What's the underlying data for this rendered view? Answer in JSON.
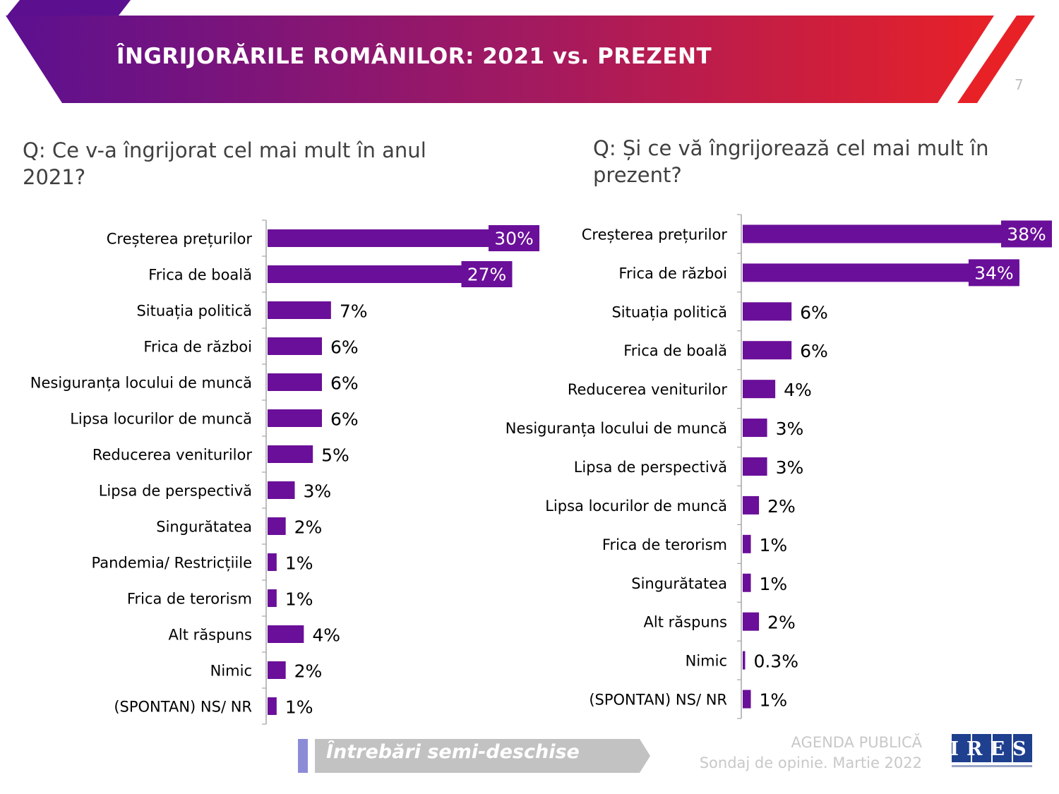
{
  "header": {
    "title": "ÎNGRIJORĂRILE ROMÂNILOR: 2021 vs. PREZENT",
    "page_number": "7"
  },
  "colors": {
    "bar": "#6a0f99",
    "banner_start": "#5c1090",
    "banner_end": "#e82127",
    "axis": "#a6a6a6"
  },
  "chart_data": [
    {
      "type": "bar",
      "orientation": "horizontal",
      "title": "Q: Ce v-a îngrijorat cel mai mult în anul 2021?",
      "categories": [
        "Creșterea prețurilor",
        "Frica de boală",
        "Situația politică",
        "Frica de război",
        "Nesiguranța locului de muncă",
        "Lipsa locurilor de muncă",
        "Reducerea veniturilor",
        "Lipsa de perspectivă",
        "Singurătatea",
        "Pandemia/ Restricțiile",
        "Frica de terorism",
        "Alt răspuns",
        "Nimic",
        "(SPONTAN) NS/ NR"
      ],
      "values": [
        30,
        27,
        7,
        6,
        6,
        6,
        5,
        3,
        2,
        1,
        1,
        4,
        2,
        1
      ],
      "labels": [
        "30%",
        "27%",
        "7%",
        "6%",
        "6%",
        "6%",
        "5%",
        "3%",
        "2%",
        "1%",
        "1%",
        "4%",
        "2%",
        "1%"
      ],
      "xlim": [
        0,
        30
      ],
      "unit": "%"
    },
    {
      "type": "bar",
      "orientation": "horizontal",
      "title": "Q: Și ce vă îngrijorează cel mai mult în prezent?",
      "categories": [
        "Creșterea prețurilor",
        "Frica de război",
        "Situația politică",
        "Frica de boală",
        "Reducerea veniturilor",
        "Nesiguranța locului de muncă",
        "Lipsa de perspectivă",
        "Lipsa locurilor de muncă",
        "Frica de terorism",
        "Singurătatea",
        "Alt răspuns",
        "Nimic",
        "(SPONTAN) NS/ NR"
      ],
      "values": [
        38,
        34,
        6,
        6,
        4,
        3,
        3,
        2,
        1,
        1,
        2,
        0.3,
        1
      ],
      "labels": [
        "38%",
        "34%",
        "6%",
        "6%",
        "4%",
        "3%",
        "3%",
        "2%",
        "1%",
        "1%",
        "2%",
        "0.3%",
        "1%"
      ],
      "xlim": [
        0,
        38
      ],
      "unit": "%"
    }
  ],
  "footer": {
    "note": "Întrebări semi-deschise",
    "source_line1": "AGENDA PUBLICĂ",
    "source_line2": "Sondaj de opinie. Martie 2022",
    "logo_text": "IRES"
  }
}
